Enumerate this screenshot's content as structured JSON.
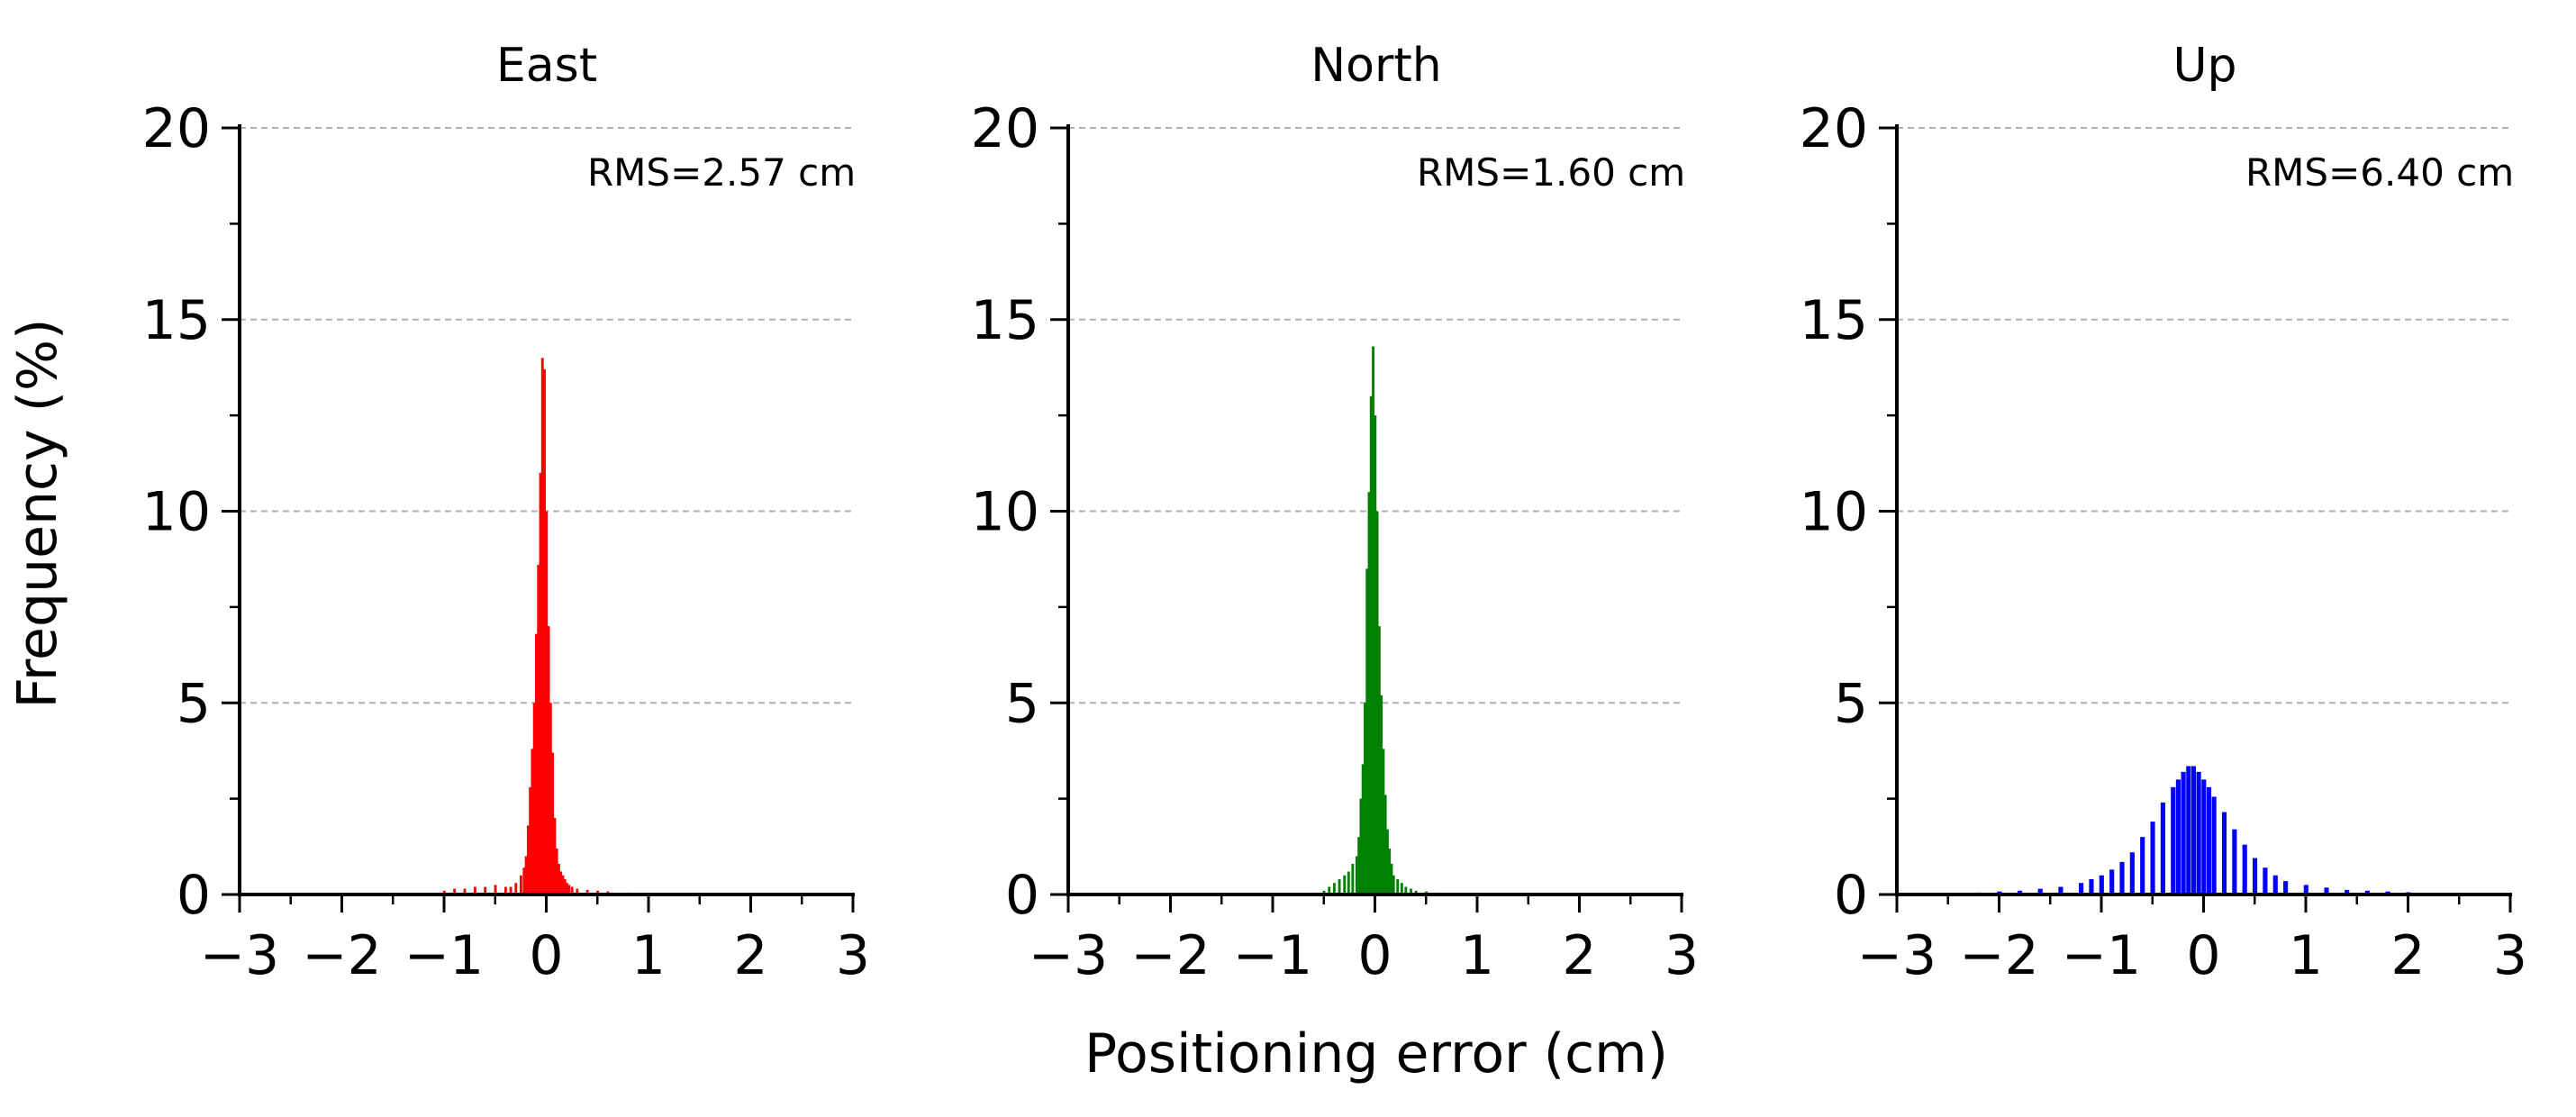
{
  "figure": {
    "ylabel": "Frequency (%)",
    "xlabel": "Positioning error (cm)"
  },
  "chart_data": [
    {
      "type": "bar",
      "title": "East",
      "annotation": "RMS=2.57 cm",
      "color": "#ff0000",
      "xlim": [
        -3,
        3
      ],
      "ylim": [
        0,
        20
      ],
      "xticks": [
        "−3",
        "−2",
        "−1",
        "0",
        "1",
        "2",
        "3"
      ],
      "yticks": [
        "0",
        "5",
        "10",
        "15",
        "20"
      ],
      "grid": "horizontal dashed",
      "bin_width": 0.02,
      "x": [
        -1.0,
        -0.9,
        -0.8,
        -0.7,
        -0.6,
        -0.5,
        -0.4,
        -0.35,
        -0.3,
        -0.25,
        -0.22,
        -0.2,
        -0.18,
        -0.16,
        -0.14,
        -0.12,
        -0.1,
        -0.08,
        -0.06,
        -0.04,
        -0.02,
        0.0,
        0.02,
        0.04,
        0.06,
        0.08,
        0.1,
        0.12,
        0.14,
        0.16,
        0.18,
        0.2,
        0.22,
        0.25,
        0.3,
        0.4,
        0.5,
        0.6,
        0.8,
        1.0
      ],
      "values": [
        0.1,
        0.15,
        0.15,
        0.2,
        0.2,
        0.25,
        0.2,
        0.2,
        0.3,
        0.5,
        0.7,
        1.0,
        1.8,
        2.8,
        3.8,
        5.0,
        6.8,
        8.6,
        11.0,
        14.0,
        13.7,
        10.0,
        7.0,
        5.0,
        3.7,
        2.0,
        1.2,
        0.8,
        0.6,
        0.5,
        0.4,
        0.3,
        0.25,
        0.2,
        0.15,
        0.12,
        0.1,
        0.08,
        0.05,
        0.03
      ]
    },
    {
      "type": "bar",
      "title": "North",
      "annotation": "RMS=1.60 cm",
      "color": "#008000",
      "xlim": [
        -3,
        3
      ],
      "ylim": [
        0,
        20
      ],
      "xticks": [
        "−3",
        "−2",
        "−1",
        "0",
        "1",
        "2",
        "3"
      ],
      "yticks": [
        "0",
        "5",
        "10",
        "15",
        "20"
      ],
      "grid": "horizontal dashed",
      "bin_width": 0.02,
      "x": [
        -0.6,
        -0.5,
        -0.45,
        -0.4,
        -0.35,
        -0.3,
        -0.26,
        -0.22,
        -0.18,
        -0.16,
        -0.14,
        -0.12,
        -0.1,
        -0.08,
        -0.06,
        -0.04,
        -0.02,
        0.0,
        0.02,
        0.04,
        0.06,
        0.08,
        0.1,
        0.12,
        0.14,
        0.16,
        0.18,
        0.22,
        0.26,
        0.3,
        0.35,
        0.4,
        0.5,
        0.6
      ],
      "values": [
        0.05,
        0.1,
        0.2,
        0.3,
        0.4,
        0.5,
        0.6,
        0.8,
        1.0,
        1.5,
        2.5,
        3.4,
        5.0,
        8.5,
        10.5,
        13.0,
        14.3,
        12.5,
        10.0,
        7.0,
        5.2,
        3.8,
        2.6,
        1.7,
        1.2,
        0.8,
        0.5,
        0.4,
        0.3,
        0.2,
        0.15,
        0.1,
        0.08,
        0.05
      ]
    },
    {
      "type": "bar",
      "title": "Up",
      "annotation": "RMS=6.40 cm",
      "color": "#0000ff",
      "xlim": [
        -3,
        3
      ],
      "ylim": [
        0,
        20
      ],
      "xticks": [
        "−3",
        "−2",
        "−1",
        "0",
        "1",
        "2",
        "3"
      ],
      "yticks": [
        "0",
        "5",
        "10",
        "15",
        "20"
      ],
      "grid": "horizontal dashed",
      "bin_width": 0.04,
      "x": [
        -2.2,
        -2.0,
        -1.8,
        -1.6,
        -1.4,
        -1.2,
        -1.1,
        -1.0,
        -0.9,
        -0.8,
        -0.7,
        -0.6,
        -0.5,
        -0.4,
        -0.3,
        -0.25,
        -0.2,
        -0.15,
        -0.1,
        -0.05,
        0.0,
        0.05,
        0.1,
        0.2,
        0.3,
        0.4,
        0.5,
        0.6,
        0.7,
        0.8,
        1.0,
        1.2,
        1.4,
        1.6,
        1.8,
        2.0,
        2.4,
        2.8
      ],
      "values": [
        0.05,
        0.08,
        0.1,
        0.15,
        0.2,
        0.3,
        0.4,
        0.5,
        0.65,
        0.85,
        1.1,
        1.5,
        1.9,
        2.4,
        2.8,
        3.0,
        3.2,
        3.35,
        3.35,
        3.2,
        3.0,
        2.8,
        2.55,
        2.15,
        1.7,
        1.3,
        0.95,
        0.7,
        0.5,
        0.35,
        0.25,
        0.18,
        0.12,
        0.1,
        0.08,
        0.06,
        0.04,
        0.03
      ]
    }
  ]
}
